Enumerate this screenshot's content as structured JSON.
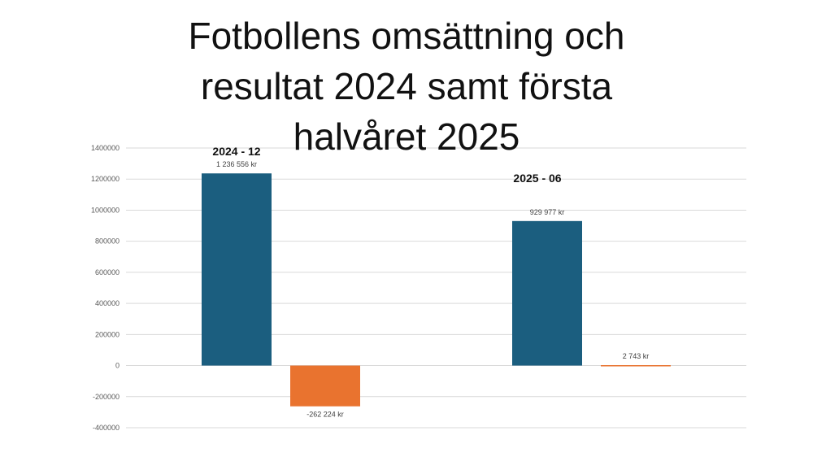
{
  "title_lines": [
    "Fotbollens omsättning och",
    "resultat 2024 samt första",
    "halvåret 2025"
  ],
  "colors": {
    "omsattning": "#1B5E7F",
    "resultat": "#E9732F",
    "grid": "#D9D9D9"
  },
  "chart_data": {
    "type": "bar",
    "categories": [
      "2024 - 12",
      "2025 - 06"
    ],
    "series": [
      {
        "values": [
          1236556,
          929977
        ],
        "data_labels": [
          "1 236 556 kr",
          "929 977 kr"
        ]
      },
      {
        "values": [
          -262224,
          2743
        ],
        "data_labels": [
          "-262 224 kr",
          "2 743 kr"
        ]
      }
    ],
    "y_ticks": [
      1400000,
      1200000,
      1000000,
      800000,
      600000,
      400000,
      200000,
      0,
      -200000,
      -400000
    ],
    "y_tick_labels": [
      "1400000",
      "1200000",
      "1000000",
      "800000",
      "600000",
      "400000",
      "200000",
      "0",
      "-200000",
      "-400000"
    ],
    "ylim": [
      -400000,
      1400000
    ],
    "grid": true,
    "legend": "none"
  }
}
